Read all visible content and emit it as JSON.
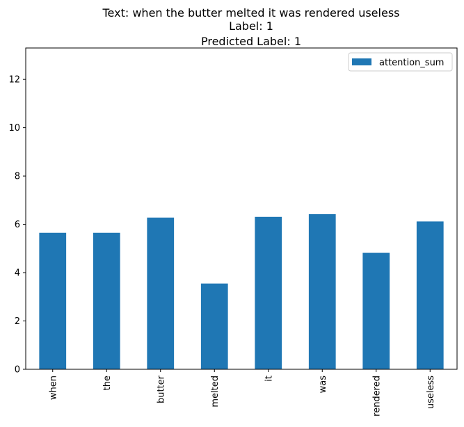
{
  "chart_data": {
    "type": "bar",
    "title_lines": [
      "Text: when the butter melted it was rendered useless",
      "Label: 1",
      "Predicted Label: 1"
    ],
    "xlabel": "",
    "ylabel": "",
    "categories": [
      "when",
      "the",
      "butter",
      "melted",
      "it",
      "was",
      "rendered",
      "useless"
    ],
    "series": [
      {
        "name": "attention_sum",
        "values": [
          5.65,
          5.65,
          6.28,
          3.55,
          6.31,
          6.42,
          4.82,
          6.12
        ]
      }
    ],
    "ylim": [
      0,
      13.3
    ],
    "yticks": [
      0,
      2,
      4,
      6,
      8,
      10,
      12
    ],
    "grid": false,
    "legend_position": "top-right",
    "bar_color": "#1f77b4"
  }
}
